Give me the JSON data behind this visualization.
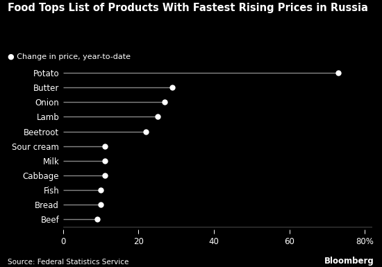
{
  "title": "Food Tops List of Products With Fastest Rising Prices in Russia",
  "subtitle": "● Change in price, year-to-date",
  "source": "Source: Federal Statistics Service",
  "branding": "Bloomberg",
  "categories": [
    "Potato",
    "Butter",
    "Onion",
    "Lamb",
    "Beetroot",
    "Sour cream",
    "Milk",
    "Cabbage",
    "Fish",
    "Bread",
    "Beef"
  ],
  "values": [
    73,
    29,
    27,
    25,
    22,
    11,
    11,
    11,
    10,
    10,
    9
  ],
  "background_color": "#000000",
  "text_color": "#ffffff",
  "line_color": "#888888",
  "dot_color": "#ffffff",
  "title_color": "#ffffff",
  "xlim": [
    0,
    82
  ],
  "xticks": [
    0,
    20,
    40,
    60,
    80
  ],
  "xtick_labels": [
    "0",
    "20",
    "40",
    "60",
    "80%"
  ],
  "title_fontsize": 10.5,
  "subtitle_fontsize": 8,
  "label_fontsize": 8.5,
  "tick_fontsize": 8.5,
  "source_fontsize": 7.5,
  "brand_fontsize": 8.5
}
